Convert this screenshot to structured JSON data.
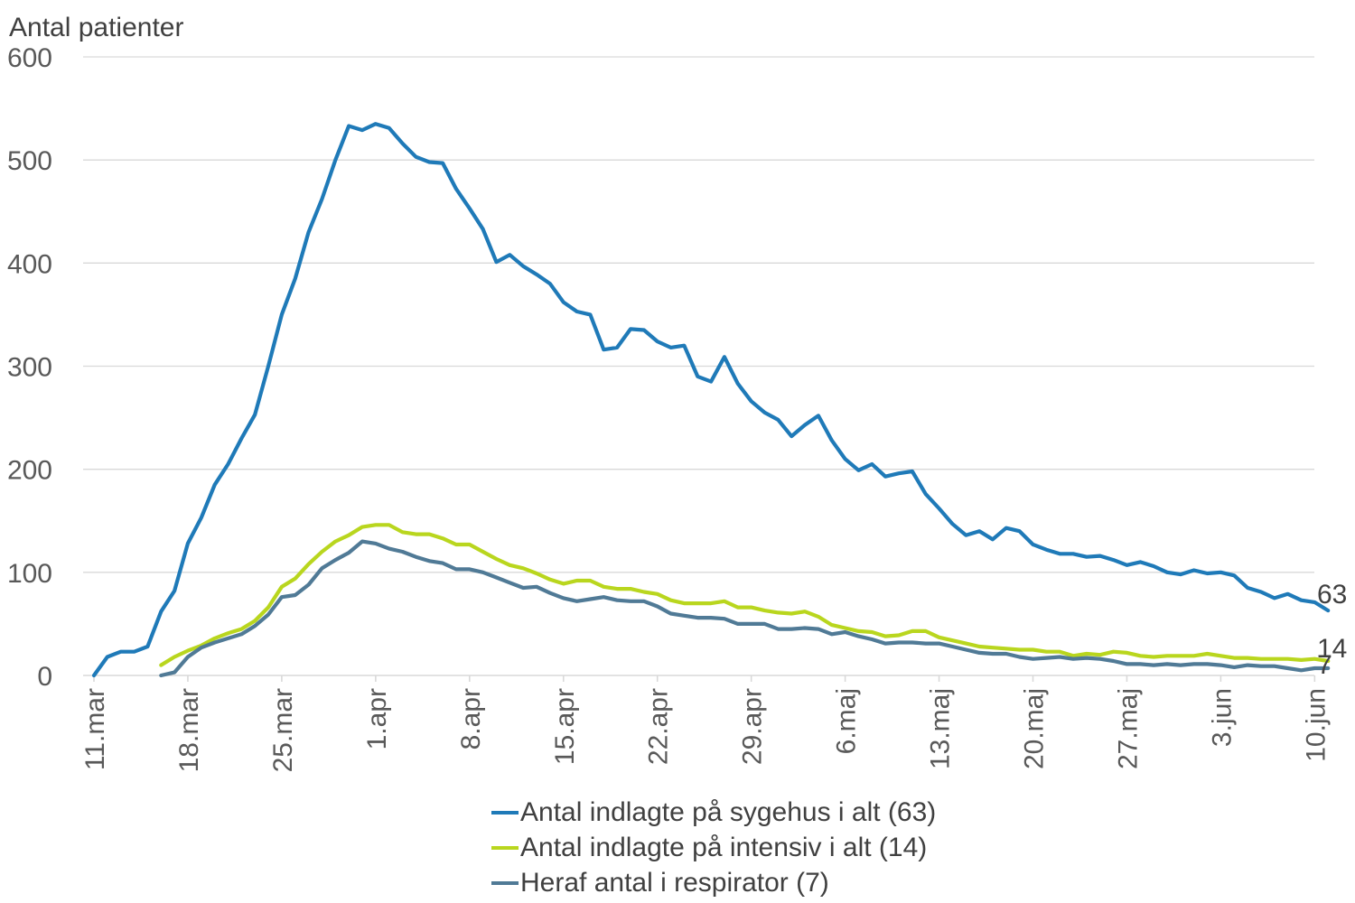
{
  "chart_data": {
    "type": "line",
    "title": "",
    "ylabel": "Antal patienter",
    "xlabel": "",
    "ylim": [
      0,
      600
    ],
    "yticks": [
      0,
      100,
      200,
      300,
      400,
      500,
      600
    ],
    "grid": true,
    "legend_position": "bottom",
    "start_date": "11.mar",
    "x_tick_labels": [
      "11.mar",
      "18.mar",
      "25.mar",
      "1.apr",
      "8.apr",
      "15.apr",
      "22.apr",
      "29.apr",
      "6.maj",
      "13.maj",
      "20.maj",
      "27.maj",
      "3.jun",
      "10.jun"
    ],
    "x_tick_day_index": [
      0,
      7,
      14,
      21,
      28,
      35,
      42,
      49,
      56,
      63,
      70,
      77,
      84,
      91
    ],
    "series": [
      {
        "name": "Antal indlagte på sygehus i alt (63)",
        "color": "#1f7ab8",
        "end_label": "63",
        "start_index": 0,
        "values": [
          0,
          18,
          23,
          23,
          28,
          62,
          82,
          128,
          153,
          185,
          205,
          230,
          253,
          300,
          350,
          385,
          430,
          462,
          500,
          533,
          529,
          535,
          531,
          516,
          503,
          498,
          497,
          472,
          453,
          433,
          401,
          408,
          397,
          389,
          380,
          362,
          353,
          350,
          316,
          318,
          336,
          335,
          324,
          318,
          320,
          290,
          285,
          309,
          283,
          266,
          255,
          248,
          232,
          243,
          252,
          228,
          210,
          199,
          205,
          193,
          196,
          198,
          176,
          162,
          147,
          136,
          140,
          132,
          143,
          140,
          127,
          122,
          118,
          118,
          115,
          116,
          112,
          107,
          110,
          106,
          100,
          98,
          102,
          99,
          100,
          97,
          85,
          81,
          75,
          79,
          73,
          71,
          63
        ]
      },
      {
        "name": "Antal indlagte på intensiv i alt (14)",
        "color": "#b9d61e",
        "end_label": "14",
        "start_index": 5,
        "values": [
          10,
          18,
          24,
          29,
          36,
          41,
          45,
          53,
          66,
          86,
          94,
          108,
          120,
          130,
          136,
          144,
          146,
          146,
          139,
          137,
          137,
          133,
          127,
          127,
          120,
          113,
          107,
          104,
          99,
          93,
          89,
          92,
          92,
          86,
          84,
          84,
          81,
          79,
          73,
          70,
          70,
          70,
          72,
          66,
          66,
          63,
          61,
          60,
          62,
          57,
          49,
          46,
          43,
          42,
          38,
          39,
          43,
          43,
          37,
          34,
          31,
          28,
          27,
          26,
          25,
          25,
          23,
          23,
          19,
          21,
          20,
          23,
          22,
          19,
          18,
          19,
          19,
          19,
          21,
          19,
          17,
          17,
          16,
          16,
          16,
          15,
          16,
          14
        ]
      },
      {
        "name": "Heraf antal i respirator (7)",
        "color": "#507a96",
        "end_label": "7",
        "start_index": 5,
        "values": [
          0,
          3,
          18,
          27,
          32,
          36,
          40,
          48,
          59,
          76,
          78,
          88,
          104,
          112,
          119,
          130,
          128,
          123,
          120,
          115,
          111,
          109,
          103,
          103,
          100,
          95,
          90,
          85,
          86,
          80,
          75,
          72,
          74,
          76,
          73,
          72,
          72,
          67,
          60,
          58,
          56,
          56,
          55,
          50,
          50,
          50,
          45,
          45,
          46,
          45,
          40,
          42,
          38,
          35,
          31,
          32,
          32,
          31,
          31,
          28,
          25,
          22,
          21,
          21,
          18,
          16,
          17,
          18,
          16,
          17,
          16,
          14,
          11,
          11,
          10,
          11,
          10,
          11,
          11,
          10,
          8,
          10,
          9,
          9,
          7,
          5,
          7,
          7
        ]
      }
    ]
  }
}
